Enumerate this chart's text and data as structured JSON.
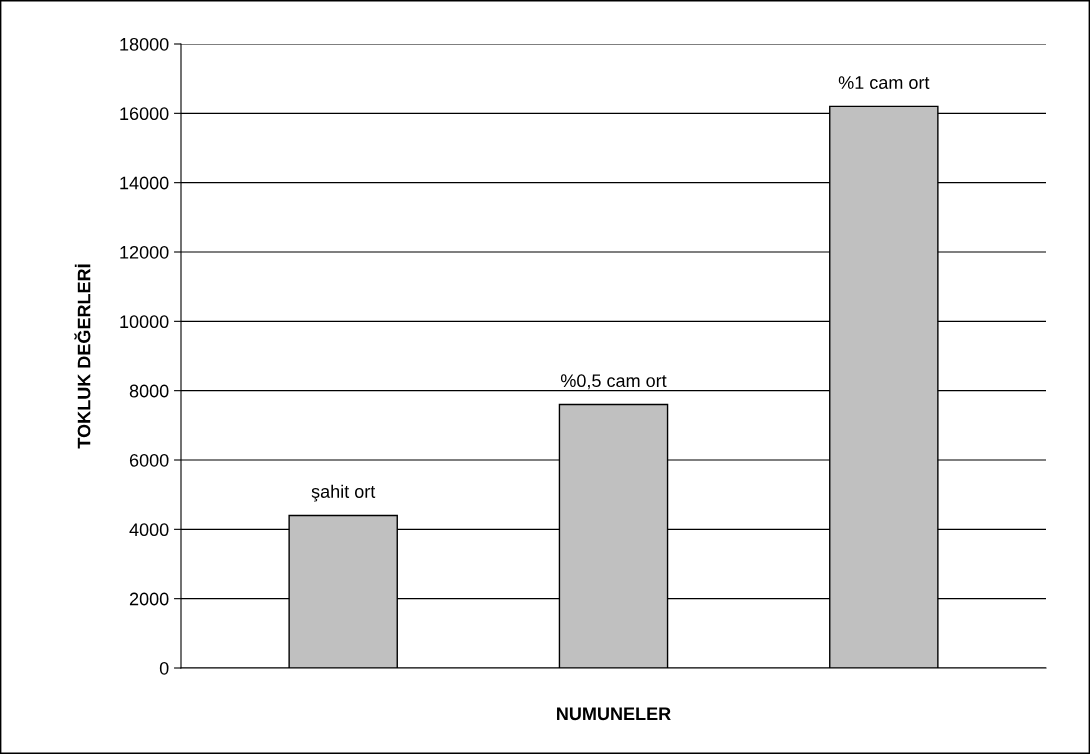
{
  "chart_data": {
    "type": "bar",
    "xlabel": "NUMUNELER",
    "ylabel": "TOKLUK DEĞERLERİ",
    "categories": [
      "şahit ort",
      "%0,5 cam ort",
      "%1 cam ort"
    ],
    "values": [
      4400,
      7600,
      16200
    ],
    "color": "#c0c0c0",
    "ylim": [
      0,
      18000
    ],
    "yticks": [
      0,
      2000,
      4000,
      6000,
      8000,
      10000,
      12000,
      14000,
      16000,
      18000
    ],
    "grid": "y",
    "legend": false
  }
}
